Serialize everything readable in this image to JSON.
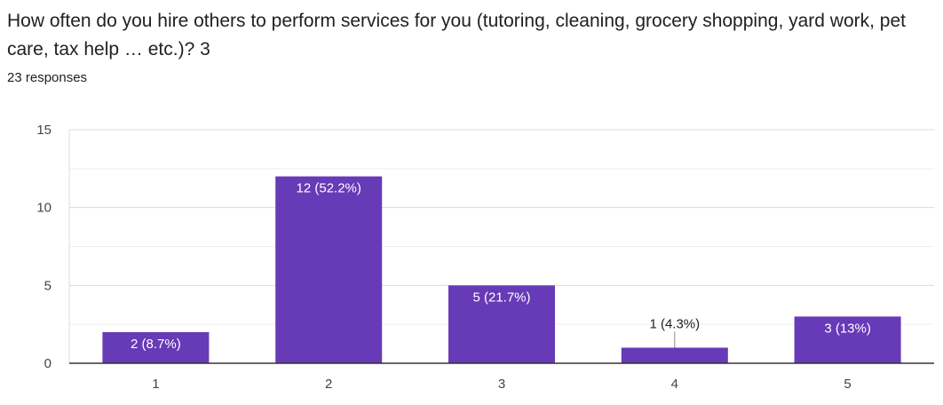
{
  "question": {
    "title": "How often do you hire others to perform services for you (tutoring, cleaning, grocery shopping, yard work, pet care, tax help … etc.)? 3",
    "responses": "23 responses"
  },
  "colors": {
    "bar": "#673ab7",
    "gridline": "#e6e6e6",
    "axis": "#333333",
    "label_inside": "#ffffff",
    "label_outside": "#222222"
  },
  "chart_data": {
    "type": "bar",
    "title": "",
    "xlabel": "",
    "ylabel": "",
    "ylim": [
      0,
      15
    ],
    "yticks": [
      "0",
      "5",
      "10",
      "15"
    ],
    "grid": true,
    "categories": [
      "1",
      "2",
      "3",
      "4",
      "5"
    ],
    "values": [
      2,
      12,
      5,
      1,
      3
    ],
    "labels": [
      "2 (8.7%)",
      "12 (52.2%)",
      "5 (21.7%)",
      "1 (4.3%)",
      "3 (13%)"
    ]
  }
}
